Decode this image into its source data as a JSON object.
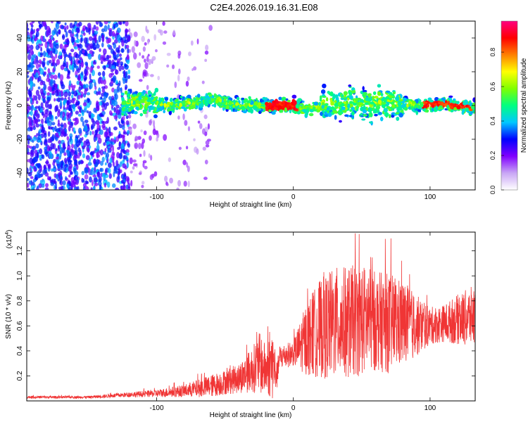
{
  "page_title": "C2E4.2026.019.16.31.E08",
  "chart_data": [
    {
      "type": "heatmap",
      "title": "C2E4.2026.019.16.31.E08",
      "xlabel": "Height of straight line (km)",
      "ylabel": "Frequency (Hz)",
      "xlim": [
        -195,
        133
      ],
      "ylim": [
        -50,
        50
      ],
      "xticks": [
        -100,
        0,
        100
      ],
      "xtick_labels": [
        "-100",
        "0",
        "100"
      ],
      "yticks": [
        -40,
        -20,
        0,
        20,
        40
      ],
      "ytick_labels": [
        "-40",
        "-20",
        "0",
        "20",
        "40"
      ],
      "colorbar": {
        "label": "Normalized spectral amplitude",
        "range": [
          0,
          0.98
        ],
        "ticks": [
          0.0,
          0.2,
          0.4,
          0.6,
          0.8
        ],
        "tick_labels": [
          "0.0",
          "0.2",
          "0.4",
          "0.6",
          "0.8"
        ],
        "colors": [
          "#ffffff",
          "#c9a6f5",
          "#8000ff",
          "#0000ff",
          "#00c8ff",
          "#00ff80",
          "#80ff00",
          "#ffff00",
          "#ff8000",
          "#ff0000",
          "#ff0080"
        ]
      },
      "band_center_hz": [
        {
          "x": -110,
          "y": 2
        },
        {
          "x": -90,
          "y": 0
        },
        {
          "x": -60,
          "y": 3
        },
        {
          "x": -40,
          "y": 0
        },
        {
          "x": -20,
          "y": 0
        },
        {
          "x": 0,
          "y": 0
        },
        {
          "x": 10,
          "y": -3
        },
        {
          "x": 25,
          "y": 2
        },
        {
          "x": 50,
          "y": 1
        },
        {
          "x": 70,
          "y": 2
        },
        {
          "x": 90,
          "y": 0
        },
        {
          "x": 110,
          "y": 1
        },
        {
          "x": 130,
          "y": -1
        }
      ]
    },
    {
      "type": "line",
      "xlabel": "Height of straight line (km)",
      "ylabel": "SNR (10 * v/v)",
      "y_multiplier_label": "(x10",
      "y_multiplier_exp": "4",
      "xlim": [
        -195,
        133
      ],
      "ylim": [
        0,
        1.35
      ],
      "xticks": [
        -100,
        0,
        100
      ],
      "xtick_labels": [
        "-100",
        "0",
        "100"
      ],
      "yticks": [
        0.2,
        0.4,
        0.6,
        0.8,
        1.0,
        1.2
      ],
      "ytick_labels": [
        "0.2",
        "0.4",
        "0.6",
        "0.8",
        "1.0",
        "1.2"
      ],
      "color": "#f03535",
      "series": [
        {
          "name": "SNR",
          "envelope_x": [
            -195,
            -150,
            -120,
            -100,
            -80,
            -70,
            -60,
            -50,
            -40,
            -30,
            -25,
            -20,
            -15,
            -12,
            -10,
            0,
            10,
            20,
            30,
            40,
            50,
            60,
            70,
            80,
            90,
            100,
            110,
            120,
            133
          ],
          "envelope_mean": [
            0.03,
            0.03,
            0.05,
            0.06,
            0.08,
            0.1,
            0.12,
            0.15,
            0.18,
            0.25,
            0.3,
            0.25,
            0.3,
            0.2,
            0.35,
            0.38,
            0.5,
            0.58,
            0.62,
            0.63,
            0.65,
            0.64,
            0.62,
            0.62,
            0.6,
            0.6,
            0.62,
            0.65,
            0.68
          ],
          "envelope_spread": [
            0.01,
            0.01,
            0.02,
            0.03,
            0.05,
            0.07,
            0.09,
            0.1,
            0.12,
            0.18,
            0.25,
            0.2,
            0.3,
            0.1,
            0.1,
            0.1,
            0.3,
            0.4,
            0.45,
            0.45,
            0.45,
            0.4,
            0.4,
            0.35,
            0.25,
            0.15,
            0.15,
            0.2,
            0.25
          ]
        }
      ]
    }
  ]
}
